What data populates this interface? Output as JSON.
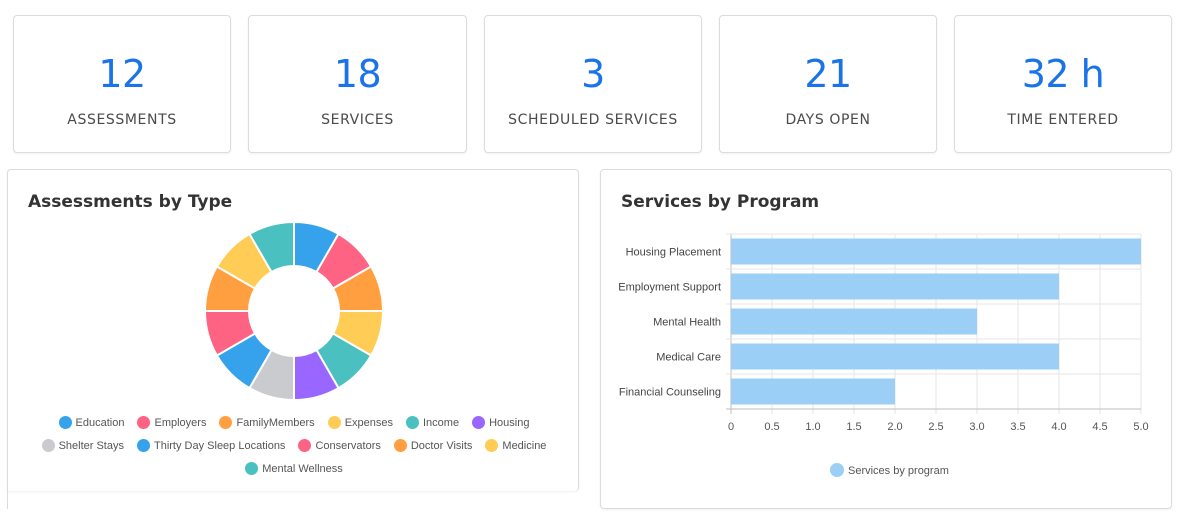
{
  "kpis": [
    {
      "value": "12",
      "label": "ASSESSMENTS"
    },
    {
      "value": "18",
      "label": "SERVICES"
    },
    {
      "value": "3",
      "label": "SCHEDULED SERVICES"
    },
    {
      "value": "21",
      "label": "DAYS OPEN"
    },
    {
      "value": "32 h",
      "label": "TIME ENTERED"
    }
  ],
  "assessments_panel": {
    "title": "Assessments by Type"
  },
  "services_panel": {
    "title": "Services by Program"
  },
  "chart_data": [
    {
      "type": "pie",
      "title": "Assessments by Type",
      "categories": [
        "Education",
        "Employers",
        "FamilyMembers",
        "Expenses",
        "Income",
        "Housing",
        "Shelter Stays",
        "Thirty Day Sleep Locations",
        "Conservators",
        "Doctor Visits",
        "Medicine",
        "Mental Wellness"
      ],
      "values": [
        1,
        1,
        1,
        1,
        1,
        1,
        1,
        1,
        1,
        1,
        1,
        1
      ],
      "colors": [
        "#36a2eb",
        "#ff6384",
        "#ff9f40",
        "#ffcd56",
        "#4bc0c0",
        "#9966ff",
        "#c9cbcf",
        "#36a2eb",
        "#ff6384",
        "#ff9f40",
        "#ffcd56",
        "#4bc0c0"
      ],
      "legend_placement": "bottom",
      "legend_rows": [
        [
          "Education",
          "Employers",
          "FamilyMembers",
          "Expenses",
          "Income",
          "Housing"
        ],
        [
          "Shelter Stays",
          "Thirty Day Sleep Locations",
          "Conservators",
          "Doctor Visits",
          "Medicine"
        ],
        [
          "Mental Wellness"
        ]
      ]
    },
    {
      "type": "bar",
      "orientation": "horizontal",
      "title": "Services by Program",
      "categories": [
        "Housing Placement",
        "Employment Support",
        "Mental Health",
        "Medical Care",
        "Financial Counseling"
      ],
      "series": [
        {
          "name": "Services by program",
          "values": [
            5,
            4,
            3,
            4,
            2
          ]
        }
      ],
      "xlim": [
        0,
        5
      ],
      "xticks": [
        "0",
        "0.5",
        "1.0",
        "1.5",
        "2.0",
        "2.5",
        "3.0",
        "3.5",
        "4.0",
        "4.5",
        "5.0"
      ],
      "grid": true,
      "bar_color": "#9ccff5",
      "legend_placement": "bottom"
    }
  ]
}
